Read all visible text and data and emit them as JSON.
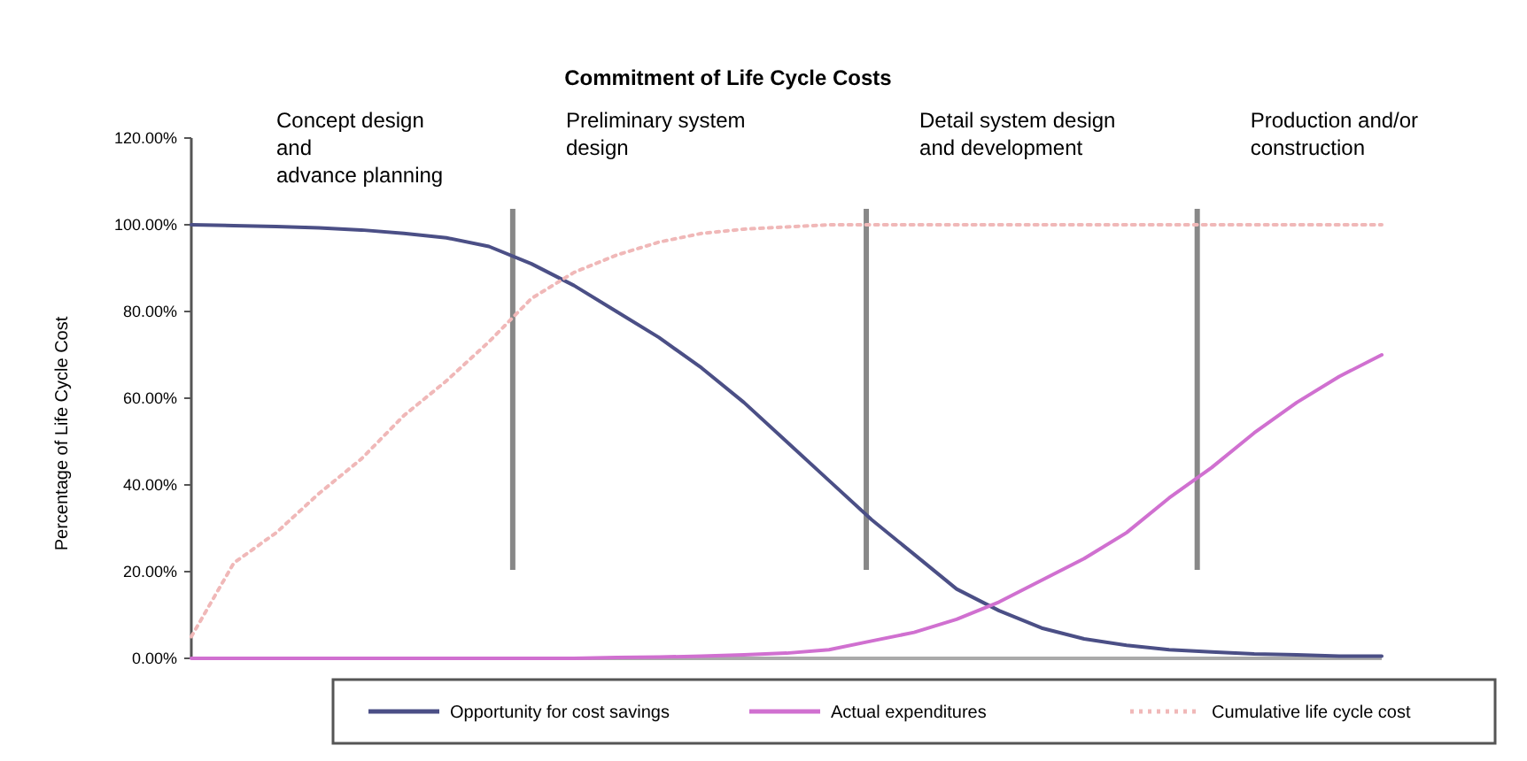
{
  "chart_data": {
    "type": "line",
    "title": "Commitment of Life Cycle Costs",
    "ylabel": "Percentage of Life Cycle Cost",
    "categories": [
      null,
      null,
      null,
      null,
      null,
      null,
      null,
      null,
      null,
      null,
      null,
      null,
      null,
      null,
      null,
      null,
      null,
      null,
      null,
      null,
      null,
      null,
      null,
      null,
      null,
      null,
      null,
      null,
      null
    ],
    "ylim": [
      0,
      120
    ],
    "yticks": [
      {
        "value": 0,
        "label": "0.00%"
      },
      {
        "value": 20,
        "label": "20.00%"
      },
      {
        "value": 40,
        "label": "40.00%"
      },
      {
        "value": 60,
        "label": "60.00%"
      },
      {
        "value": 80,
        "label": "80.00%"
      },
      {
        "value": 100,
        "label": "100.00%"
      },
      {
        "value": 120,
        "label": "120.00%"
      }
    ],
    "series": [
      {
        "name": "Opportunity for cost savings",
        "color": "#4b4f86",
        "line_style": "solid",
        "values": [
          100,
          99.8,
          99.6,
          99.3,
          98.8,
          98,
          97,
          95,
          91,
          86,
          80,
          74,
          67,
          59,
          50,
          41,
          32,
          24,
          16,
          11,
          7,
          4.5,
          3,
          2,
          1.5,
          1,
          0.8,
          0.5,
          0.5
        ]
      },
      {
        "name": "Actual expenditures",
        "color": "#d070d0",
        "line_style": "solid",
        "values": [
          0,
          0,
          0,
          0,
          0,
          0,
          0,
          0,
          0,
          0,
          0.2,
          0.3,
          0.5,
          0.8,
          1.2,
          2,
          4,
          6,
          9,
          13,
          18,
          23,
          29,
          37,
          44,
          52,
          59,
          65,
          70
        ]
      },
      {
        "name": "Cumulative life cycle cost",
        "color": "#f0b8b8",
        "line_style": "dotted",
        "values": [
          5,
          22,
          29,
          38,
          46,
          56,
          64,
          73,
          83,
          89,
          93,
          96,
          98,
          99,
          99.5,
          100,
          100,
          100,
          100,
          100,
          100,
          100,
          100,
          100,
          100,
          100,
          100,
          100,
          100
        ]
      }
    ],
    "annotations": [
      "Concept design\nand\nadvance planning",
      "Preliminary system\ndesign",
      "Detail system design\nand development",
      "Production and/or\nconstruction"
    ],
    "grid": false,
    "legend": "bottom"
  }
}
